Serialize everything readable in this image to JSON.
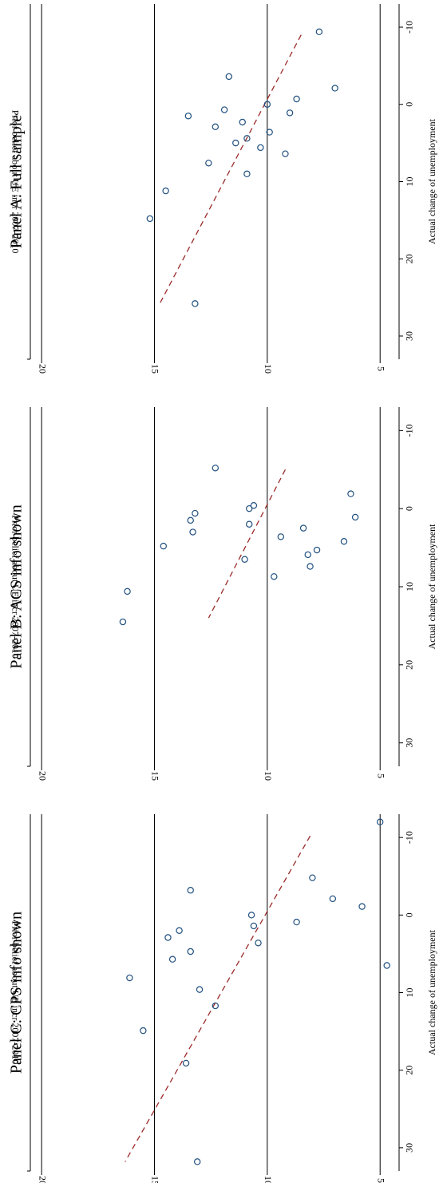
{
  "chart_data": [
    {
      "type": "scatter",
      "title": "Panel A: Full sample",
      "xlabel": "Actual change of unemployment",
      "ylabel": "Prior belief about UE incr 2007-2010",
      "xlim": [
        -13,
        33
      ],
      "ylim": [
        4.3,
        20.5
      ],
      "xticks": [
        -10,
        0,
        10,
        20,
        30
      ],
      "yticks": [
        5,
        10,
        15,
        20
      ],
      "grid": "y-major",
      "points": [
        {
          "x": 25.8,
          "y": 13.2
        },
        {
          "x": 14.8,
          "y": 15.2
        },
        {
          "x": 11.2,
          "y": 14.5
        },
        {
          "x": 9.0,
          "y": 10.9
        },
        {
          "x": 7.6,
          "y": 12.6
        },
        {
          "x": 6.4,
          "y": 9.2
        },
        {
          "x": 5.6,
          "y": 10.3
        },
        {
          "x": 5.0,
          "y": 11.4
        },
        {
          "x": 4.4,
          "y": 10.9
        },
        {
          "x": 3.6,
          "y": 9.9
        },
        {
          "x": 2.9,
          "y": 12.3
        },
        {
          "x": 2.3,
          "y": 11.1
        },
        {
          "x": 1.5,
          "y": 13.5
        },
        {
          "x": 1.1,
          "y": 9.0
        },
        {
          "x": 0.7,
          "y": 11.9
        },
        {
          "x": 0.0,
          "y": 10.0
        },
        {
          "x": -0.7,
          "y": 8.7
        },
        {
          "x": -2.1,
          "y": 7.0
        },
        {
          "x": -3.6,
          "y": 11.7
        },
        {
          "x": -9.4,
          "y": 7.7
        }
      ],
      "fit_line": {
        "x1": -9.0,
        "y1": 8.5,
        "x2": 26.0,
        "y2": 14.8
      }
    },
    {
      "type": "scatter",
      "title": "Panel B: ACS info shown",
      "xlabel": "Actual change of unemployment",
      "ylabel": "Prior belief about UE incr 2007-2010",
      "xlim": [
        -13,
        33
      ],
      "ylim": [
        4.3,
        20.5
      ],
      "xticks": [
        -10,
        0,
        10,
        20,
        30
      ],
      "yticks": [
        5,
        10,
        15,
        20
      ],
      "grid": "y-major",
      "points": [
        {
          "x": 14.5,
          "y": 16.4
        },
        {
          "x": 10.6,
          "y": 16.2
        },
        {
          "x": 8.7,
          "y": 9.7
        },
        {
          "x": 7.4,
          "y": 8.1
        },
        {
          "x": 6.5,
          "y": 11.0
        },
        {
          "x": 5.9,
          "y": 8.2
        },
        {
          "x": 5.3,
          "y": 7.8
        },
        {
          "x": 4.8,
          "y": 14.6
        },
        {
          "x": 4.2,
          "y": 6.6
        },
        {
          "x": 3.6,
          "y": 9.4
        },
        {
          "x": 3.0,
          "y": 13.3
        },
        {
          "x": 2.5,
          "y": 8.4
        },
        {
          "x": 2.0,
          "y": 10.8
        },
        {
          "x": 1.5,
          "y": 13.4
        },
        {
          "x": 1.1,
          "y": 6.1
        },
        {
          "x": 0.6,
          "y": 13.2
        },
        {
          "x": 0.0,
          "y": 10.8
        },
        {
          "x": -0.4,
          "y": 10.6
        },
        {
          "x": -1.9,
          "y": 6.3
        },
        {
          "x": -5.2,
          "y": 12.3
        }
      ],
      "fit_line": {
        "x1": -5.0,
        "y1": 9.2,
        "x2": 14.0,
        "y2": 12.6
      }
    },
    {
      "type": "scatter",
      "title": "Panel C: CPS info shown",
      "xlabel": "Actual change of unemployment",
      "ylabel": "Prior belief about UE incr 2007-2010",
      "xlim": [
        -13,
        33
      ],
      "ylim": [
        4.3,
        20.5
      ],
      "xticks": [
        -10,
        0,
        10,
        20,
        30
      ],
      "yticks": [
        5,
        10,
        15,
        20
      ],
      "grid": "y-major",
      "points": [
        {
          "x": 31.8,
          "y": 13.1
        },
        {
          "x": 19.1,
          "y": 13.6
        },
        {
          "x": 14.9,
          "y": 15.5
        },
        {
          "x": 11.7,
          "y": 12.3
        },
        {
          "x": 9.6,
          "y": 13.0
        },
        {
          "x": 8.1,
          "y": 16.1
        },
        {
          "x": 6.5,
          "y": 4.7
        },
        {
          "x": 5.7,
          "y": 14.2
        },
        {
          "x": 4.7,
          "y": 13.4
        },
        {
          "x": 3.6,
          "y": 10.4
        },
        {
          "x": 2.9,
          "y": 14.4
        },
        {
          "x": 2.0,
          "y": 13.9
        },
        {
          "x": 1.4,
          "y": 10.6
        },
        {
          "x": 0.9,
          "y": 8.7
        },
        {
          "x": 0.0,
          "y": 10.7
        },
        {
          "x": -1.1,
          "y": 5.8
        },
        {
          "x": -2.1,
          "y": 7.1
        },
        {
          "x": -3.2,
          "y": 13.4
        },
        {
          "x": -4.8,
          "y": 8.0
        },
        {
          "x": -12.0,
          "y": 5.0
        }
      ],
      "fit_line": {
        "x1": -10.2,
        "y1": 8.1,
        "x2": 31.8,
        "y2": 16.3
      }
    }
  ]
}
